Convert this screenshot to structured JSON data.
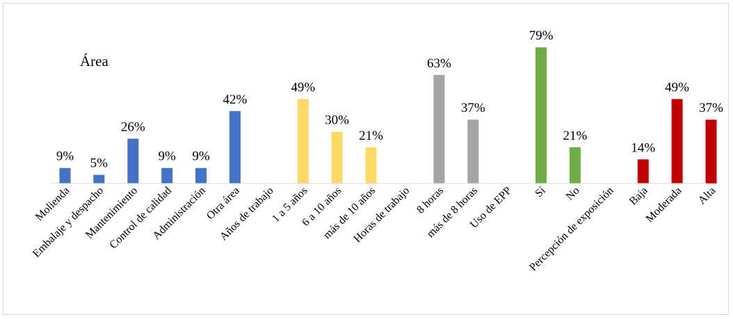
{
  "chart_data": {
    "type": "bar",
    "title": "",
    "annotation": "Área",
    "xlabel": "",
    "ylabel": "",
    "ylim": [
      0,
      1
    ],
    "grid": false,
    "legend": "none",
    "value_format": "percent",
    "categories": [
      "Molienda",
      "Embalaje y despacho",
      "Mantenimiento",
      "Control de calidad",
      "Administración",
      "Otra área",
      "Años de trabajo",
      "1 a 5 años",
      "6 a 10 años",
      "más de 10 años",
      "Horas de trabajo",
      "8 horas",
      "más de 8 horas",
      "Uso de EPP",
      "Sí",
      "No",
      "Percepción de exposición",
      "Baja",
      "Moderada",
      "Alta"
    ],
    "values": [
      0.09,
      0.05,
      0.26,
      0.09,
      0.09,
      0.42,
      null,
      0.49,
      0.3,
      0.21,
      null,
      0.63,
      0.37,
      null,
      0.79,
      0.21,
      null,
      0.14,
      0.49,
      0.37
    ],
    "colors": [
      "#4472c4",
      "#4472c4",
      "#4472c4",
      "#4472c4",
      "#4472c4",
      "#4472c4",
      "",
      "#ffd966",
      "#ffd966",
      "#ffd966",
      "",
      "#a5a5a5",
      "#a5a5a5",
      "",
      "#70ad47",
      "#70ad47",
      "",
      "#c00000",
      "#c00000",
      "#c00000"
    ]
  }
}
